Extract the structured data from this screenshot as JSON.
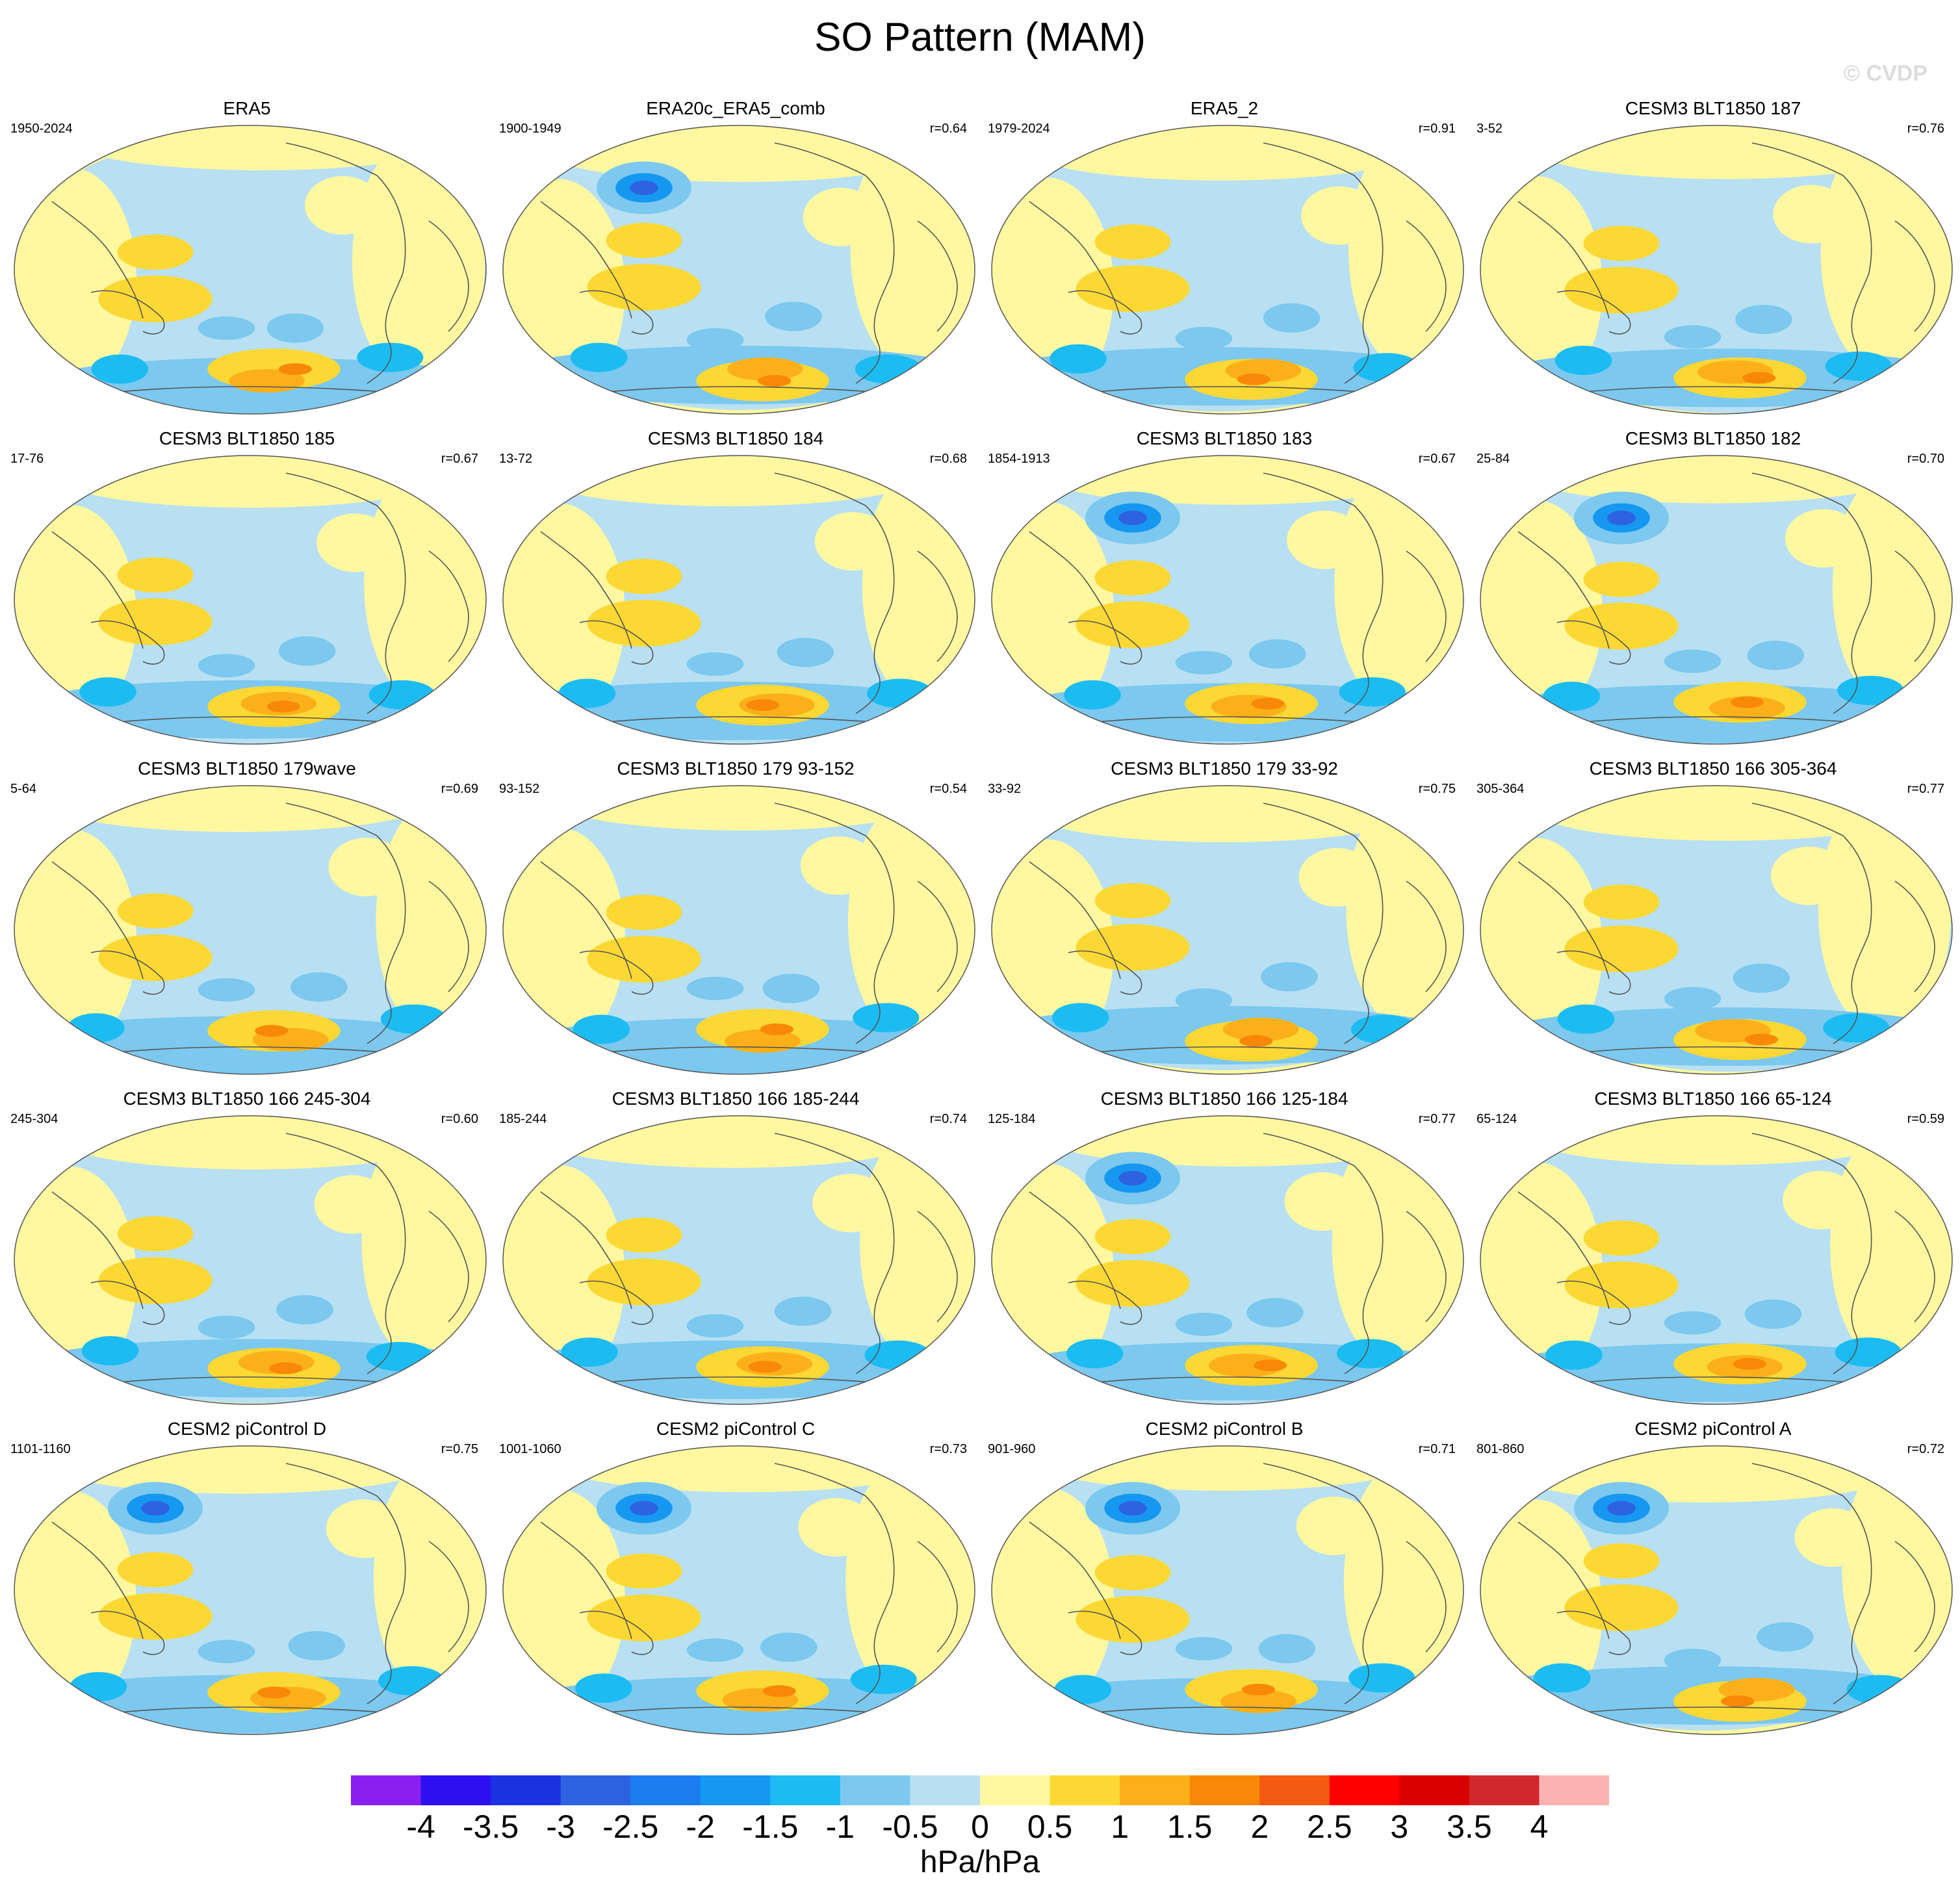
{
  "title": "SO Pattern (MAM)",
  "watermark": "© CVDP",
  "units": "hPa/hPa",
  "colorbar": {
    "ticks": [
      "-4",
      "-3.5",
      "-3",
      "-2.5",
      "-2",
      "-1.5",
      "-1",
      "-0.5",
      "0",
      "0.5",
      "1",
      "1.5",
      "2",
      "2.5",
      "3",
      "3.5",
      "4"
    ],
    "colors": [
      "#8a20f0",
      "#2e0ff0",
      "#1a32e0",
      "#2e62e0",
      "#1c7cf0",
      "#1698f0",
      "#1cbcf2",
      "#7cc8ee",
      "#b8e0f2",
      "#fff8a0",
      "#fcd834",
      "#fbb01a",
      "#f88808",
      "#f45a12",
      "#fe0000",
      "#d80000",
      "#d0282c",
      "#fcb2b2"
    ]
  },
  "panels": [
    {
      "title": "ERA5",
      "period": "1950-2024",
      "r": ""
    },
    {
      "title": "ERA20c_ERA5_comb",
      "period": "1900-1949",
      "r": "r=0.64"
    },
    {
      "title": "ERA5_2",
      "period": "1979-2024",
      "r": "r=0.91"
    },
    {
      "title": "CESM3 BLT1850 187",
      "period": "3-52",
      "r": "r=0.76"
    },
    {
      "title": "CESM3 BLT1850 185",
      "period": "17-76",
      "r": "r=0.67"
    },
    {
      "title": "CESM3 BLT1850 184",
      "period": "13-72",
      "r": "r=0.68"
    },
    {
      "title": "CESM3 BLT1850 183",
      "period": "1854-1913",
      "r": "r=0.67"
    },
    {
      "title": "CESM3 BLT1850 182",
      "period": "25-84",
      "r": "r=0.70"
    },
    {
      "title": "CESM3 BLT1850 179wave",
      "period": "5-64",
      "r": "r=0.69"
    },
    {
      "title": "CESM3 BLT1850 179 93-152",
      "period": "93-152",
      "r": "r=0.54"
    },
    {
      "title": "CESM3 BLT1850 179 33-92",
      "period": "33-92",
      "r": "r=0.75"
    },
    {
      "title": "CESM3 BLT1850 166 305-364",
      "period": "305-364",
      "r": "r=0.77"
    },
    {
      "title": "CESM3 BLT1850 166 245-304",
      "period": "245-304",
      "r": "r=0.60"
    },
    {
      "title": "CESM3 BLT1850 166 185-244",
      "period": "185-244",
      "r": "r=0.74"
    },
    {
      "title": "CESM3 BLT1850 166 125-184",
      "period": "125-184",
      "r": "r=0.77"
    },
    {
      "title": "CESM3 BLT1850 166 65-124",
      "period": "65-124",
      "r": "r=0.59"
    },
    {
      "title": "CESM2 piControl D",
      "period": "1101-1160",
      "r": "r=0.75"
    },
    {
      "title": "CESM2 piControl C",
      "period": "1001-1060",
      "r": "r=0.73"
    },
    {
      "title": "CESM2 piControl B",
      "period": "901-960",
      "r": "r=0.71"
    },
    {
      "title": "CESM2 piControl A",
      "period": "801-860",
      "r": "r=0.72"
    }
  ]
}
